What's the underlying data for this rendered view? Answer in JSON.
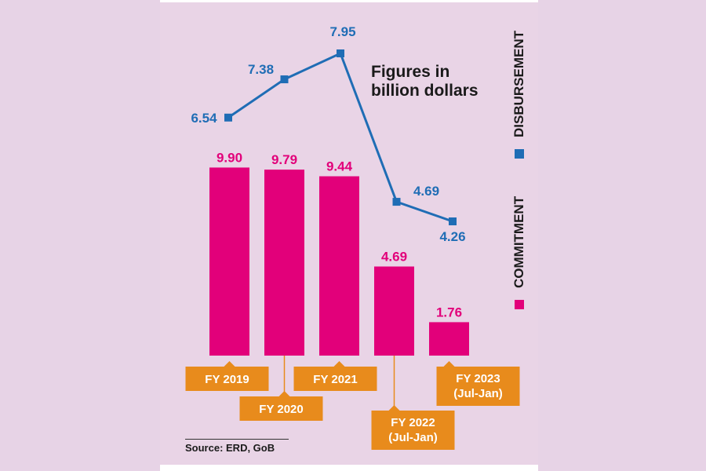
{
  "chart_data": {
    "type": "bar",
    "title": "Figures in billion dollars",
    "categories": [
      "FY 2019",
      "FY 2020",
      "FY 2021",
      "FY 2022\n(Jul-Jan)",
      "FY 2023\n(Jul-Jan)"
    ],
    "series": [
      {
        "name": "COMMITMENT",
        "type": "bar",
        "color": "#e2007a",
        "values": [
          9.9,
          9.79,
          9.44,
          4.69,
          1.76
        ],
        "labels": [
          "9.90",
          "9.79",
          "9.44",
          "4.69",
          "1.76"
        ]
      },
      {
        "name": "DISBURSEMENT",
        "type": "line",
        "color": "#1f6db5",
        "values": [
          6.54,
          7.38,
          7.95,
          4.69,
          4.26
        ],
        "labels": [
          "6.54",
          "7.38",
          "7.95",
          "4.69",
          "4.26"
        ]
      }
    ],
    "label_box_color": "#e88b1c",
    "axes_visible": false,
    "grid": false,
    "legend": "right, vertical",
    "source": "Source: ERD, GoB"
  }
}
